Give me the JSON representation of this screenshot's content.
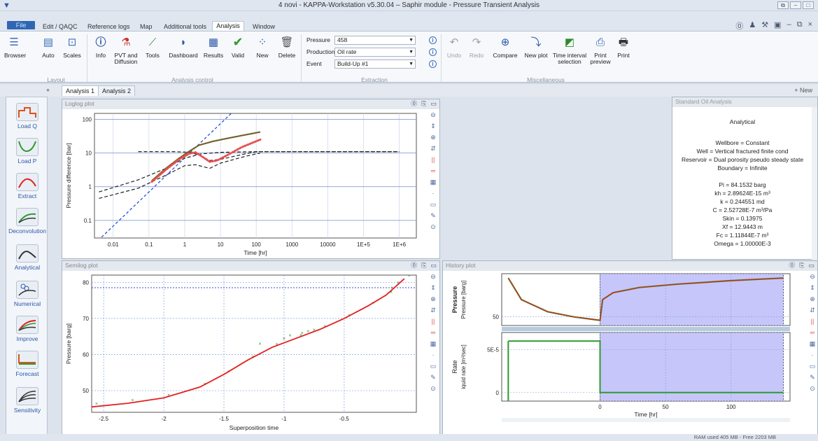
{
  "window": {
    "title": "4 novi - KAPPA-Workstation v5.30.04 – Saphir module - Pressure Transient Analysis"
  },
  "menu_tabs": [
    "File",
    "Edit / QAQC",
    "Reference logs",
    "Map",
    "Additional tools",
    "Analysis",
    "Window"
  ],
  "ribbon": {
    "layout": {
      "buttons": [
        "Browser",
        "Auto",
        "Scales"
      ],
      "group": "Layout"
    },
    "analysis_control": {
      "buttons": [
        "Info",
        "PVT and Diffusion",
        "Tools",
        "Dashboard",
        "Results",
        "Valid",
        "New",
        "Delete"
      ],
      "group": "Analysis control"
    },
    "extraction": {
      "pressure_label": "Pressure",
      "pressure_value": "458",
      "production_label": "Production",
      "production_value": "Oil rate",
      "event_label": "Event",
      "event_value": "Build-Up #1",
      "group": "Extraction"
    },
    "misc": {
      "buttons": [
        "Undo",
        "Redo",
        "Compare",
        "New plot",
        "Time interval selection",
        "Print preview",
        "Print"
      ],
      "group": "Miscellaneous"
    }
  },
  "doc_tabs": [
    "Analysis 1",
    "Analysis 2"
  ],
  "new_button": "+ New",
  "sidebar": [
    "Load Q",
    "Load P",
    "Extract",
    "Deconvolution",
    "Analytical",
    "Numerical",
    "Improve",
    "Forecast",
    "Sensitivity"
  ],
  "loglog": {
    "title": "Loglog plot",
    "ylabel": "Pressure difference [bar]",
    "xlabel": "Time [hr]",
    "yticks": [
      "100",
      "10",
      "1",
      "0.1"
    ],
    "xticks": [
      "0.01",
      "0.1",
      "1",
      "10",
      "100",
      "1000",
      "10000",
      "1E+5",
      "1E+6"
    ]
  },
  "semilog": {
    "title": "Semilog plot",
    "ylabel": "Pressure [barg]",
    "xlabel": "Superposition time",
    "yticks": [
      "80",
      "70",
      "60",
      "50"
    ],
    "xticks": [
      "-2.5",
      "-2",
      "-1.5",
      "-1",
      "-0.5"
    ]
  },
  "history": {
    "title": "History plot",
    "p_label": "Pressure",
    "p_unit": "Pressure [barg]",
    "q_label": "Rate",
    "q_unit": "iquid rate [m³/sec]",
    "p_ticks": [
      "50"
    ],
    "q_ticks": [
      "5E-5",
      "0"
    ],
    "xticks": [
      "0",
      "50",
      "100"
    ],
    "xlabel": "Time [hr]"
  },
  "standard": {
    "title": "Standard Oil Analysis",
    "heading": "Analytical",
    "model": [
      "Wellbore = Constant",
      "Well = Vertical fractured finite cond",
      "Reservoir = Dual porosity pseudo steady state",
      "Boundary = Infinite"
    ],
    "results": [
      "Pi = 84.1532 barg",
      "kh = 2.89624E-15 m³",
      "k = 0.244551 md",
      "C = 2.52728E-7 m³/Pa",
      "Skin = 0.13975",
      "Xf = 12.9443 m",
      "Fc = 1.11844E-7 m³",
      "Omega = 1.00000E-3"
    ]
  },
  "status": "RAM used 405 MB - Free 2203 MB",
  "colors": {
    "accent": "#2f66b4",
    "model_red": "#e32020",
    "model_green": "#2e9a2e",
    "data_red": "#e85050",
    "history_fill": "#c6c6fb"
  },
  "chart_data": [
    {
      "type": "line",
      "title": "Loglog plot",
      "xlabel": "Time [hr]",
      "ylabel": "Pressure difference [bar]",
      "xscale": "log",
      "yscale": "log",
      "xlim": [
        0.003,
        3000000
      ],
      "ylim": [
        0.03,
        150
      ],
      "series": [
        {
          "values": [
            [
              0.12,
              1.5
            ],
            [
              0.3,
              3.5
            ],
            [
              0.7,
              7
            ],
            [
              1.3,
              11
            ],
            [
              2.5,
              17
            ],
            [
              6,
              22
            ],
            [
              15,
              27
            ],
            [
              40,
              33
            ],
            [
              130,
              42
            ]
          ]
        },
        {
          "values": [
            [
              0.12,
              1.4
            ],
            [
              0.3,
              3.2
            ],
            [
              0.7,
              6.5
            ],
            [
              1.3,
              9.5
            ],
            [
              2,
              10.5
            ],
            [
              3,
              8
            ],
            [
              5,
              5.5
            ],
            [
              8,
              6
            ],
            [
              15,
              8.5
            ],
            [
              40,
              15
            ],
            [
              130,
              25
            ]
          ]
        },
        {
          "values": [
            [
              0.05,
              11
            ],
            [
              0.5,
              11
            ],
            [
              1.5,
              10.5
            ],
            [
              3,
              8
            ],
            [
              5,
              6
            ],
            [
              10,
              6.5
            ],
            [
              40,
              9
            ],
            [
              100,
              11
            ],
            [
              1000000,
              11
            ]
          ]
        },
        {
          "values": [
            [
              0.004,
              0.7
            ],
            [
              0.05,
              1.6
            ],
            [
              0.3,
              3.5
            ],
            [
              1,
              7
            ],
            [
              3,
              9.5
            ],
            [
              10,
              10.5
            ],
            [
              100,
              11
            ],
            [
              1000000,
              11
            ]
          ]
        },
        {
          "values": [
            [
              0.004,
              0.45
            ],
            [
              0.05,
              0.9
            ],
            [
              0.3,
              2.2
            ],
            [
              1,
              4.2
            ],
            [
              2,
              4.5
            ],
            [
              5,
              3.5
            ],
            [
              10,
              5
            ],
            [
              50,
              8
            ],
            [
              130,
              10
            ]
          ]
        },
        {
          "values": [
            [
              0.003,
              0.02
            ],
            [
              20,
              150
            ]
          ]
        }
      ]
    },
    {
      "type": "line",
      "title": "Semilog plot",
      "xlabel": "Superposition time",
      "ylabel": "Pressure [barg]",
      "xlim": [
        -2.6,
        0.1
      ],
      "ylim": [
        44,
        82
      ],
      "series": [
        {
          "values": [
            [
              -2.6,
              45.5
            ],
            [
              -2.3,
              46.5
            ],
            [
              -2,
              48
            ],
            [
              -1.7,
              51
            ],
            [
              -1.5,
              54.5
            ],
            [
              -1.3,
              58.5
            ],
            [
              -1.1,
              62
            ],
            [
              -0.9,
              64.5
            ],
            [
              -0.7,
              67
            ],
            [
              -0.5,
              70
            ],
            [
              -0.3,
              73.5
            ],
            [
              -0.15,
              76.5
            ],
            [
              0.0,
              81
            ]
          ]
        }
      ]
    },
    {
      "type": "line",
      "title": "History plot",
      "xlabel": "Time [hr]",
      "xlim": [
        -75,
        145
      ],
      "series": [
        {
          "values": [
            [
              -70,
              95
            ],
            [
              -60,
              70
            ],
            [
              -40,
              56
            ],
            [
              -20,
              50
            ],
            [
              -5,
              47
            ],
            [
              0,
              46
            ],
            [
              2,
              70
            ],
            [
              10,
              78
            ],
            [
              30,
              84
            ],
            [
              60,
              88
            ],
            [
              100,
              92
            ],
            [
              140,
              95
            ]
          ]
        },
        {
          "values": [
            [
              -70,
              6e-05
            ],
            [
              0,
              6e-05
            ],
            [
              0,
              0
            ],
            [
              140,
              0
            ]
          ]
        }
      ]
    }
  ]
}
